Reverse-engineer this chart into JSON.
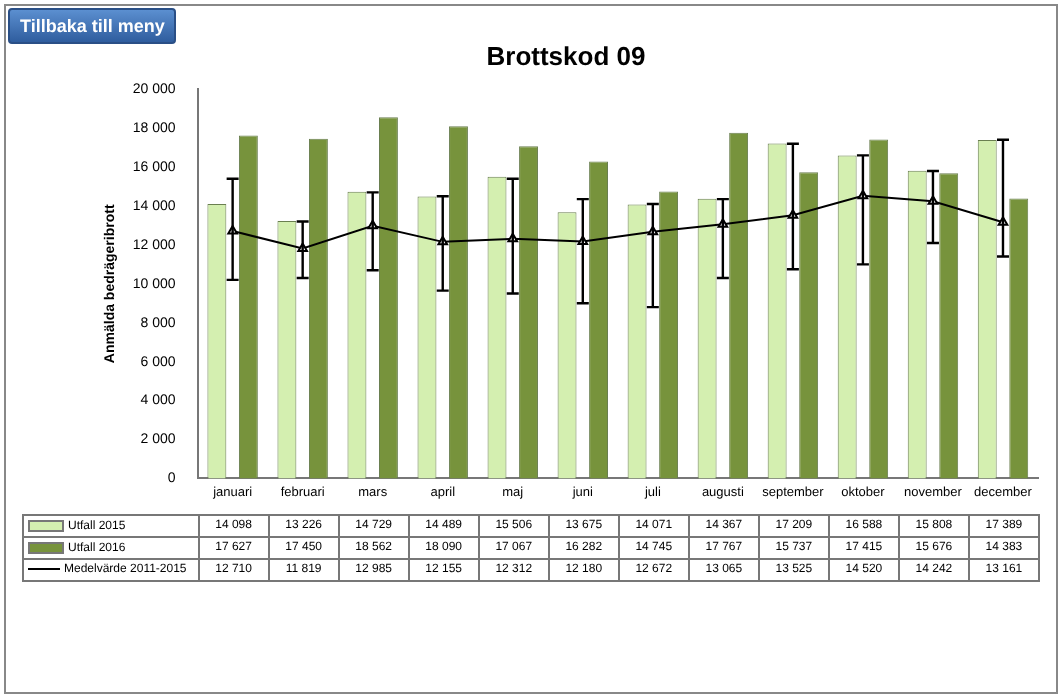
{
  "chart_data": {
    "type": "bar",
    "title": "Brottskod 09",
    "ylabel": "Anmälda bedrägeribrott",
    "categories": [
      "januari",
      "februari",
      "mars",
      "april",
      "maj",
      "juni",
      "juli",
      "augusti",
      "september",
      "oktober",
      "november",
      "december"
    ],
    "series": [
      {
        "name": "Utfall 2015",
        "color": "#d4efb0",
        "values": [
          14098,
          13226,
          14729,
          14489,
          15506,
          13675,
          14071,
          14367,
          17209,
          16588,
          15808,
          17389
        ],
        "value_labels": [
          "14 098",
          "13 226",
          "14 729",
          "14 489",
          "15 506",
          "13 675",
          "14 071",
          "14 367",
          "17 209",
          "16 588",
          "15 808",
          "17 389"
        ]
      },
      {
        "name": "Utfall 2016",
        "color": "#77933c",
        "values": [
          17627,
          17450,
          18562,
          18090,
          17067,
          16282,
          14745,
          17767,
          15737,
          17415,
          15676,
          14383
        ],
        "value_labels": [
          "17 627",
          "17 450",
          "18 562",
          "18 090",
          "17 067",
          "16 282",
          "14 745",
          "17 767",
          "15 737",
          "17 415",
          "15 676",
          "14 383"
        ]
      },
      {
        "name": "Medelvärde 2011-2015",
        "type": "line",
        "color": "#000000",
        "marker": "triangle",
        "values": [
          12710,
          11819,
          12985,
          12155,
          12312,
          12180,
          12672,
          13065,
          13525,
          14520,
          14242,
          13161
        ],
        "value_labels": [
          "12 710",
          "11 819",
          "12 985",
          "12 155",
          "12 312",
          "12 180",
          "12 672",
          "13 065",
          "13 525",
          "14 520",
          "14 242",
          "13 161"
        ],
        "errors": [
          [
            10200,
            15400
          ],
          [
            10300,
            13200
          ],
          [
            10700,
            14700
          ],
          [
            9650,
            14500
          ],
          [
            9500,
            15400
          ],
          [
            9000,
            14350
          ],
          [
            8800,
            14100
          ],
          [
            10300,
            14350
          ],
          [
            10750,
            17200
          ],
          [
            11000,
            16600
          ],
          [
            12100,
            15800
          ],
          [
            11400,
            17400
          ]
        ]
      }
    ],
    "ylim": [
      0,
      20000
    ],
    "yticks": [
      0,
      {
        "value": 2000,
        "label": "2 000"
      },
      {
        "value": 4000,
        "label": "4 000"
      },
      {
        "value": 6000,
        "label": "6 000"
      },
      {
        "value": 8000,
        "label": "8 000"
      },
      {
        "value": 10000,
        "label": "10 000"
      },
      {
        "value": 12000,
        "label": "12 000"
      },
      {
        "value": 14000,
        "label": "14 000"
      },
      {
        "value": 16000,
        "label": "16 000"
      },
      {
        "value": 18000,
        "label": "18 000"
      },
      {
        "value": 20000,
        "label": "20 000"
      }
    ],
    "grid": false,
    "legend": "bottom",
    "annotations": [
      "Tillbaka till meny"
    ]
  }
}
